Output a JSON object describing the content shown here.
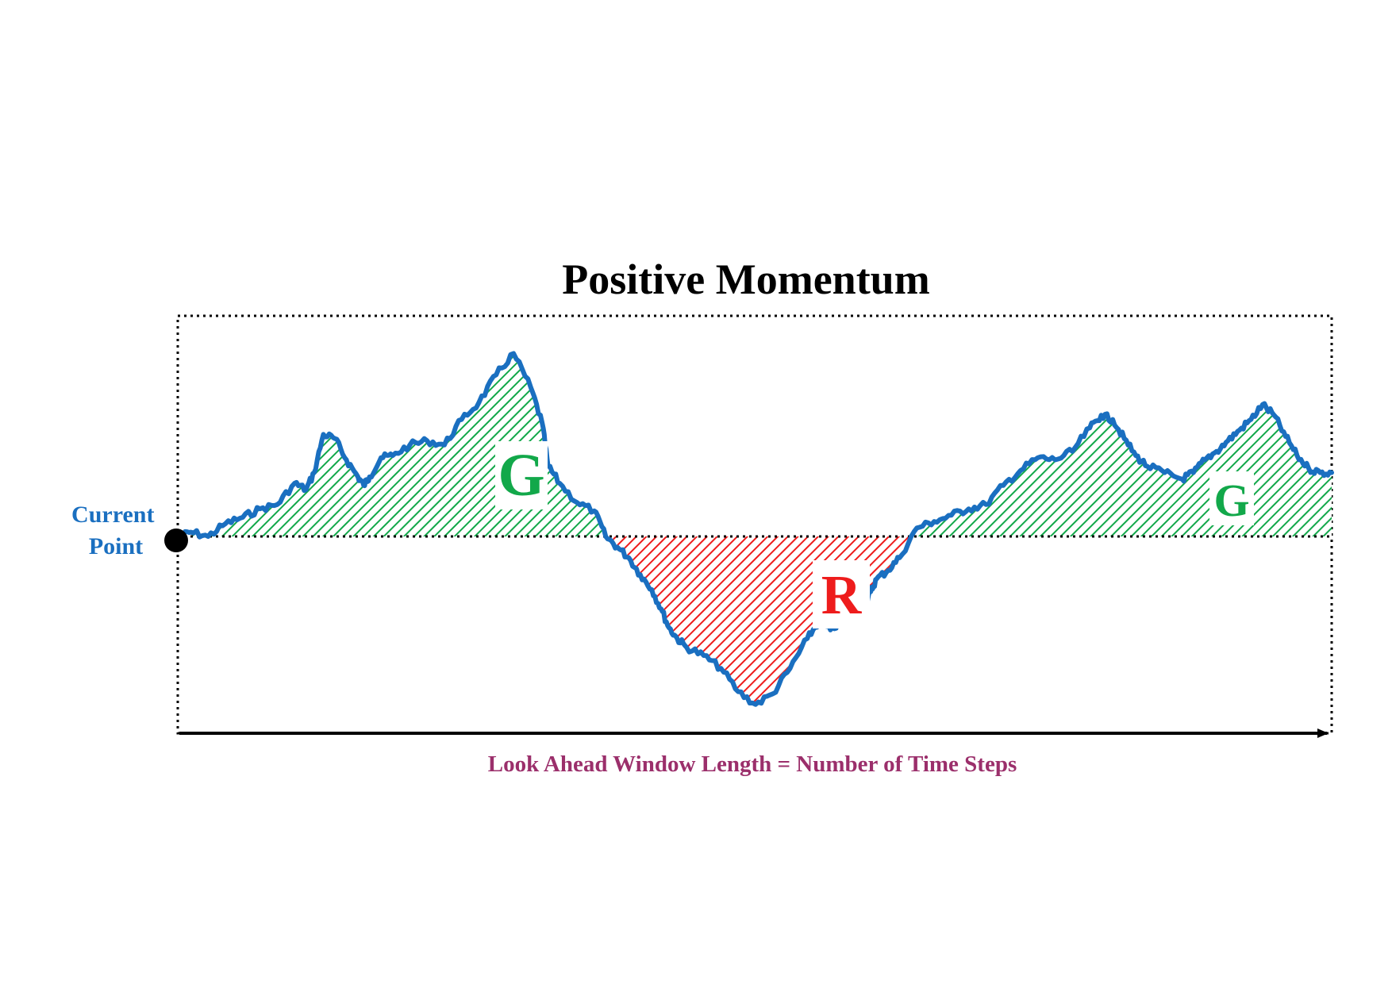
{
  "title": "Positive Momentum",
  "current_point_label": [
    "Current",
    "Point"
  ],
  "axis_label": "Look Ahead Window Length = Number of Time Steps",
  "regions": [
    {
      "letter": "G",
      "meaning": "gain"
    },
    {
      "letter": "R",
      "meaning": "loss"
    },
    {
      "letter": "G",
      "meaning": "gain"
    }
  ],
  "colors": {
    "price_line": "#1a6fc0",
    "gain": "#12a84a",
    "loss": "#ee1c1c",
    "current_point_label": "#1a6fc0",
    "axis_label": "#9b2f6b",
    "title": "#000000",
    "frame": "#000000"
  },
  "chart_data": {
    "type": "area",
    "baseline": 0,
    "x": [
      0,
      0.01,
      0.025,
      0.04,
      0.055,
      0.07,
      0.085,
      0.1,
      0.11,
      0.117,
      0.125,
      0.135,
      0.145,
      0.155,
      0.16,
      0.165,
      0.175,
      0.185,
      0.2,
      0.215,
      0.23,
      0.245,
      0.26,
      0.275,
      0.29,
      0.305,
      0.315,
      0.32,
      0.33,
      0.345,
      0.36,
      0.37,
      0.38,
      0.39,
      0.4,
      0.41,
      0.418,
      0.425,
      0.432,
      0.44,
      0.455,
      0.47,
      0.485,
      0.5,
      0.515,
      0.53,
      0.545,
      0.555,
      0.565,
      0.575,
      0.585,
      0.595,
      0.6,
      0.605,
      0.615,
      0.625,
      0.64,
      0.655,
      0.67,
      0.685,
      0.7,
      0.715,
      0.73,
      0.745,
      0.76,
      0.775,
      0.79,
      0.8,
      0.81,
      0.82,
      0.83,
      0.84,
      0.855,
      0.87,
      0.88,
      0.89,
      0.9,
      0.91,
      0.92,
      0.93,
      0.94,
      0.95,
      0.96,
      0.97,
      0.98,
      0.99,
      1.0
    ],
    "y": [
      0.0,
      0.02,
      0.0,
      0.06,
      0.09,
      0.13,
      0.15,
      0.25,
      0.22,
      0.3,
      0.48,
      0.46,
      0.36,
      0.28,
      0.24,
      0.28,
      0.37,
      0.38,
      0.43,
      0.45,
      0.43,
      0.55,
      0.63,
      0.76,
      0.86,
      0.7,
      0.53,
      0.33,
      0.25,
      0.16,
      0.12,
      0.0,
      -0.05,
      -0.1,
      -0.18,
      -0.25,
      -0.34,
      -0.43,
      -0.48,
      -0.52,
      -0.56,
      -0.62,
      -0.73,
      -0.79,
      -0.74,
      -0.62,
      -0.48,
      -0.4,
      -0.44,
      -0.4,
      -0.36,
      -0.33,
      -0.26,
      -0.2,
      -0.16,
      -0.1,
      0.04,
      0.07,
      0.1,
      0.13,
      0.15,
      0.24,
      0.31,
      0.37,
      0.36,
      0.4,
      0.51,
      0.57,
      0.55,
      0.46,
      0.38,
      0.33,
      0.3,
      0.27,
      0.3,
      0.36,
      0.4,
      0.45,
      0.5,
      0.55,
      0.62,
      0.57,
      0.47,
      0.38,
      0.32,
      0.3,
      0.3
    ],
    "xlabel": "Look Ahead Window Length = Number of Time Steps",
    "ylabel": "",
    "title": "Positive Momentum",
    "grid": false
  }
}
